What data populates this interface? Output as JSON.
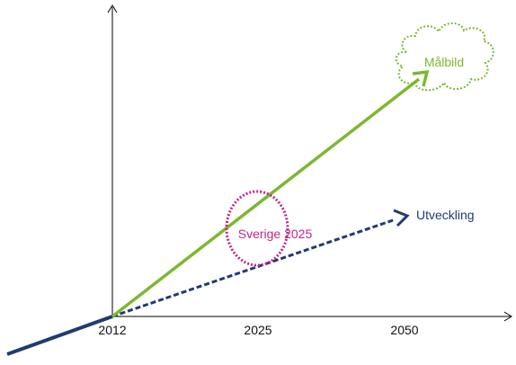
{
  "diagram": {
    "x_ticks": [
      "2012",
      "2025",
      "2050"
    ],
    "goal_label": "Målbild",
    "trend_label": "Utveckling",
    "milestone_label": "Sverige 2025",
    "colors": {
      "goal": "#7cb82f",
      "trend": "#1f3b73",
      "milestone": "#c2278c",
      "axis": "#000000"
    }
  }
}
